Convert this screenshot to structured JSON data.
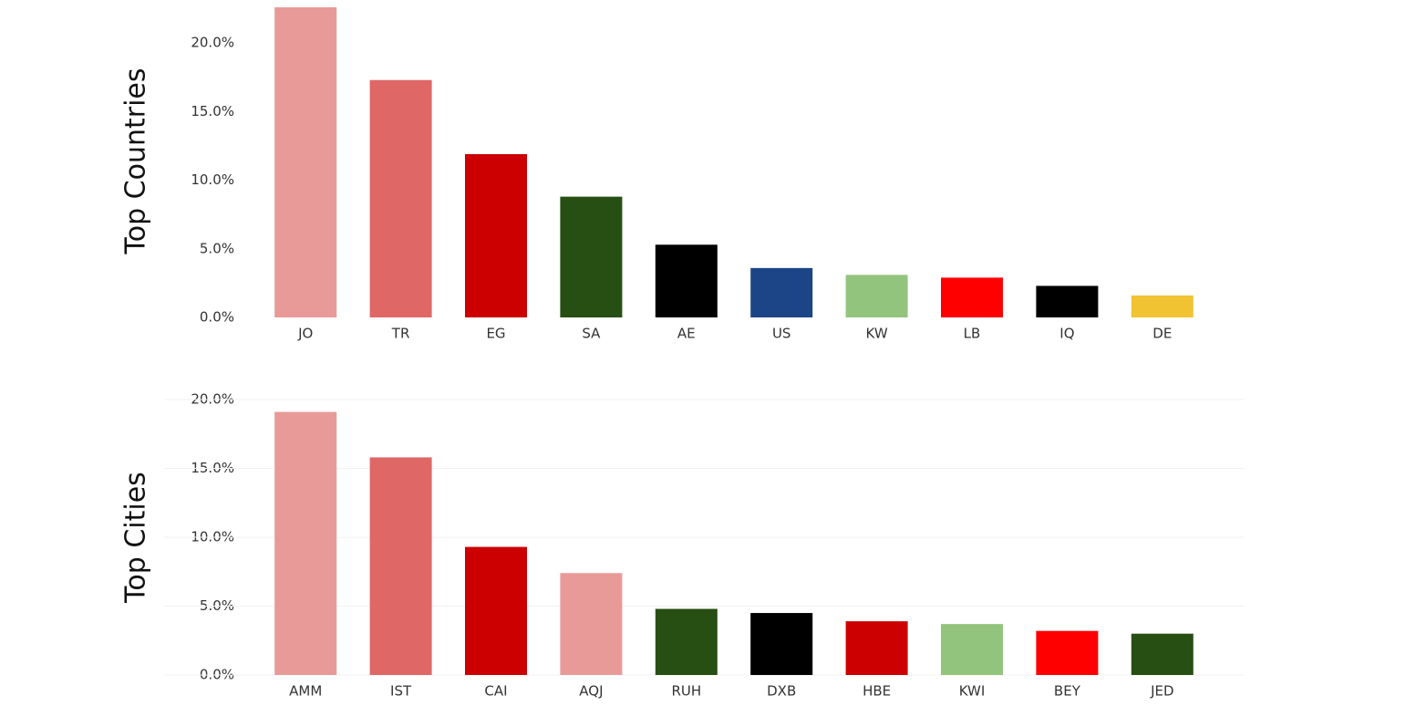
{
  "chart_data": [
    {
      "type": "bar",
      "y_label": "Top Countries",
      "categories": [
        "JO",
        "TR",
        "EG",
        "SA",
        "AE",
        "US",
        "KW",
        "LB",
        "IQ",
        "DE"
      ],
      "values": [
        22.6,
        17.3,
        11.9,
        8.8,
        5.3,
        3.6,
        3.1,
        2.9,
        2.3,
        1.6
      ],
      "colors": [
        "#e89a98",
        "#df6766",
        "#cc0000",
        "#274e13",
        "#000000",
        "#1c4587",
        "#93c47d",
        "#ff0000",
        "#000000",
        "#f1c232"
      ],
      "ylim": [
        0,
        22.8
      ],
      "yticks": [
        {
          "value": 0,
          "label": "0.0%"
        },
        {
          "value": 5,
          "label": "5.0%"
        },
        {
          "value": 10,
          "label": "10.0%"
        },
        {
          "value": 15,
          "label": "15.0%"
        },
        {
          "value": 20,
          "label": "20.0%"
        }
      ],
      "grid": false
    },
    {
      "type": "bar",
      "y_label": "Top Cities",
      "categories": [
        "AMM",
        "IST",
        "CAI",
        "AQJ",
        "RUH",
        "DXB",
        "HBE",
        "KWI",
        "BEY",
        "JED"
      ],
      "values": [
        19.1,
        15.8,
        9.3,
        7.4,
        4.8,
        4.5,
        3.9,
        3.7,
        3.2,
        3.0
      ],
      "colors": [
        "#e89a98",
        "#df6766",
        "#cc0000",
        "#e89a98",
        "#274e13",
        "#000000",
        "#cc0000",
        "#93c47d",
        "#ff0000",
        "#274e13"
      ],
      "ylim": [
        0,
        20
      ],
      "yticks": [
        {
          "value": 0,
          "label": "0.0%"
        },
        {
          "value": 5,
          "label": "5.0%"
        },
        {
          "value": 10,
          "label": "10.0%"
        },
        {
          "value": 15,
          "label": "15.0%"
        },
        {
          "value": 20,
          "label": "20.0%"
        }
      ],
      "grid": true
    }
  ]
}
